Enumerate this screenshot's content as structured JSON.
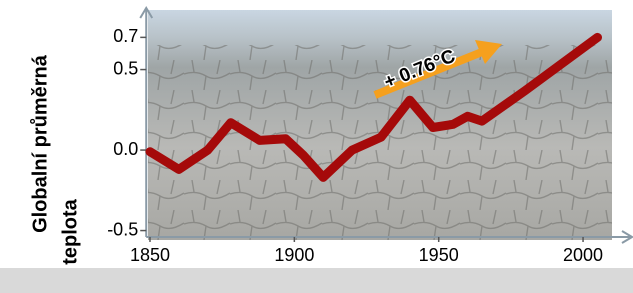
{
  "chart_data": {
    "type": "line",
    "y_label": [
      "Globalní průměrná",
      "teplota"
    ],
    "annotation": "+ 0.76°C",
    "x": [
      1850,
      1860,
      1870,
      1878,
      1888,
      1897,
      1903,
      1910,
      1920,
      1930,
      1940,
      1948,
      1955,
      1960,
      1965,
      1980,
      2005
    ],
    "series": [
      {
        "color": "#a50a0a",
        "values": [
          -0.01,
          -0.12,
          0.0,
          0.17,
          0.06,
          0.07,
          -0.03,
          -0.17,
          0.0,
          0.08,
          0.31,
          0.14,
          0.16,
          0.21,
          0.18,
          0.37,
          0.7
        ]
      }
    ],
    "xlim": [
      1848,
      2015
    ],
    "ylim": [
      -0.54,
      0.87
    ],
    "xticks": [
      1850,
      1900,
      1950,
      2000
    ],
    "yticks": [
      0.7,
      0.5,
      {
        "value": 0,
        "label": "0.0"
      },
      -0.5
    ],
    "annotation_color": "#f5a01e"
  }
}
